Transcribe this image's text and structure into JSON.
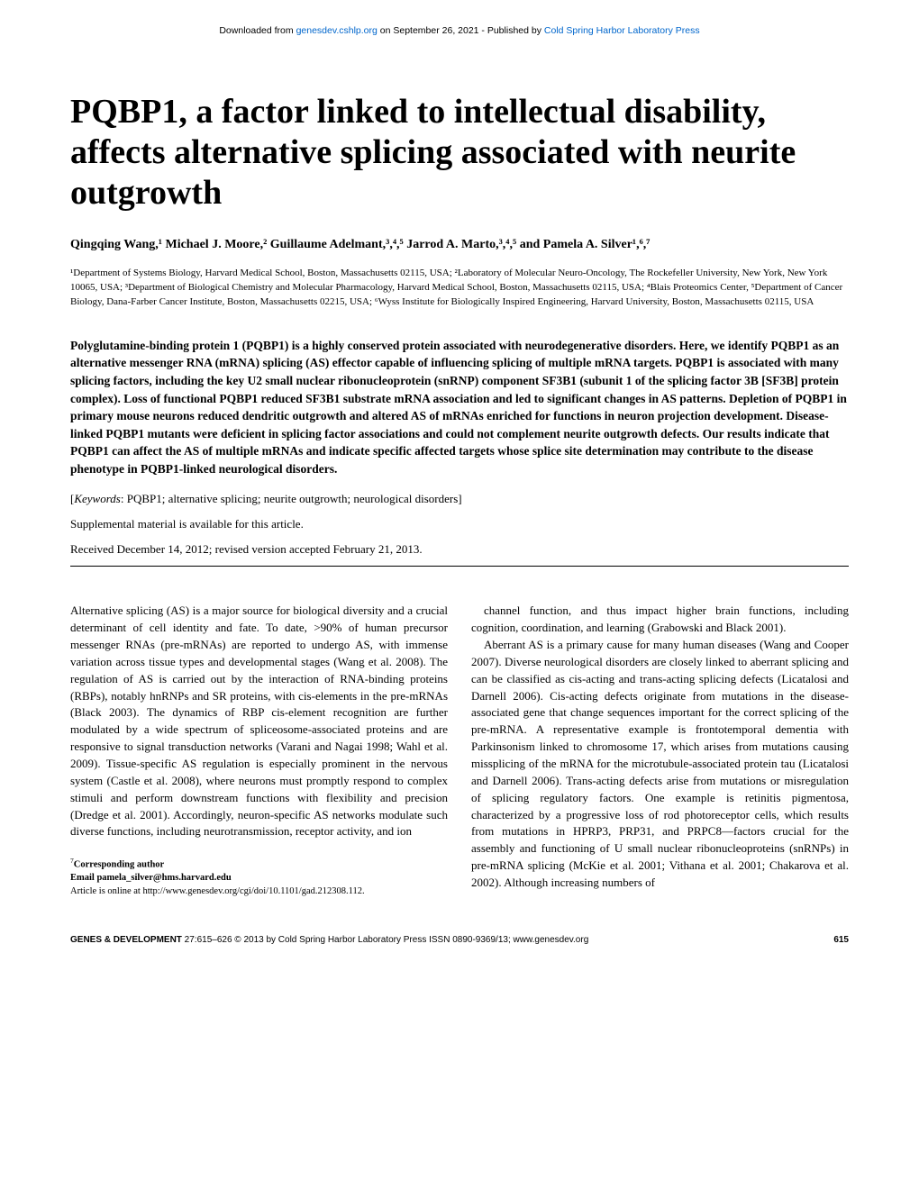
{
  "header": {
    "download_prefix": "Downloaded from ",
    "download_link_text": "genesdev.cshlp.org",
    "download_mid": " on September 26, 2021 - Published by ",
    "publisher_link_text": "Cold Spring Harbor Laboratory Press"
  },
  "title": "PQBP1, a factor linked to intellectual disability, affects alternative splicing associated with neurite outgrowth",
  "authors_line": "Qingqing Wang,¹ Michael J. Moore,² Guillaume Adelmant,³,⁴,⁵ Jarrod A. Marto,³,⁴,⁵ and Pamela A. Silver¹,⁶,⁷",
  "affiliations": "¹Department of Systems Biology, Harvard Medical School, Boston, Massachusetts 02115, USA; ²Laboratory of Molecular Neuro-Oncology, The Rockefeller University, New York, New York 10065, USA; ³Department of Biological Chemistry and Molecular Pharmacology, Harvard Medical School, Boston, Massachusetts 02115, USA; ⁴Blais Proteomics Center, ⁵Department of Cancer Biology, Dana-Farber Cancer Institute, Boston, Massachusetts 02215, USA; ⁶Wyss Institute for Biologically Inspired Engineering, Harvard University, Boston, Massachusetts 02115, USA",
  "abstract": "Polyglutamine-binding protein 1 (PQBP1) is a highly conserved protein associated with neurodegenerative disorders. Here, we identify PQBP1 as an alternative messenger RNA (mRNA) splicing (AS) effector capable of influencing splicing of multiple mRNA targets. PQBP1 is associated with many splicing factors, including the key U2 small nuclear ribonucleoprotein (snRNP) component SF3B1 (subunit 1 of the splicing factor 3B [SF3B] protein complex). Loss of functional PQBP1 reduced SF3B1 substrate mRNA association and led to significant changes in AS patterns. Depletion of PQBP1 in primary mouse neurons reduced dendritic outgrowth and altered AS of mRNAs enriched for functions in neuron projection development. Disease-linked PQBP1 mutants were deficient in splicing factor associations and could not complement neurite outgrowth defects. Our results indicate that PQBP1 can affect the AS of multiple mRNAs and indicate specific affected targets whose splice site determination may contribute to the disease phenotype in PQBP1-linked neurological disorders.",
  "keywords": {
    "label": "Keywords",
    "text": ": PQBP1; alternative splicing; neurite outgrowth; neurological disorders]"
  },
  "supplement": "Supplemental material is available for this article.",
  "received": "Received December 14, 2012; revised version accepted February 21, 2013.",
  "body": {
    "p1": "Alternative splicing (AS) is a major source for biological diversity and a crucial determinant of cell identity and fate. To date, >90% of human precursor messenger RNAs (pre-mRNAs) are reported to undergo AS, with immense variation across tissue types and developmental stages (Wang et al. 2008). The regulation of AS is carried out by the interaction of RNA-binding proteins (RBPs), notably hnRNPs and SR proteins, with cis-elements in the pre-mRNAs (Black 2003). The dynamics of RBP cis-element recognition are further modulated by a wide spectrum of spliceosome-associated proteins and are responsive to signal transduction networks (Varani and Nagai 1998; Wahl et al. 2009). Tissue-specific AS regulation is especially prominent in the nervous system (Castle et al. 2008), where neurons must promptly respond to complex stimuli and perform downstream functions with flexibility and precision (Dredge et al. 2001). Accordingly, neuron-specific AS networks modulate such diverse functions, including neurotransmission, receptor activity, and ion",
    "p2": "channel function, and thus impact higher brain functions, including cognition, coordination, and learning (Grabowski and Black 2001).",
    "p3": "Aberrant AS is a primary cause for many human diseases (Wang and Cooper 2007). Diverse neurological disorders are closely linked to aberrant splicing and can be classified as cis-acting and trans-acting splicing defects (Licatalosi and Darnell 2006). Cis-acting defects originate from mutations in the disease-associated gene that change sequences important for the correct splicing of the pre-mRNA. A representative example is frontotemporal dementia with Parkinsonism linked to chromosome 17, which arises from mutations causing missplicing of the mRNA for the microtubule-associated protein tau (Licatalosi and Darnell 2006). Trans-acting defects arise from mutations or misregulation of splicing regulatory factors. One example is retinitis pigmentosa, characterized by a progressive loss of rod photoreceptor cells, which results from mutations in HPRP3, PRP31, and PRPC8—factors crucial for the assembly and functioning of U small nuclear ribonucleoproteins (snRNPs) in pre-mRNA splicing (McKie et al. 2001; Vithana et al. 2001; Chakarova et al. 2002). Although increasing numbers of"
  },
  "corresponding": {
    "sup": "7",
    "label": "Corresponding author",
    "email_label": "Email ",
    "email": "pamela_silver@hms.harvard.edu",
    "doi": "Article is online at http://www.genesdev.org/cgi/doi/10.1101/gad.212308.112."
  },
  "footer": {
    "left_gd": "GENES & DEVELOPMENT",
    "left_rest": " 27:615–626 © 2013 by Cold Spring Harbor Laboratory Press ISSN 0890-9369/13; www.genesdev.org",
    "page_num": "615"
  },
  "colors": {
    "link": "#0066cc",
    "text": "#000000",
    "bg": "#ffffff"
  }
}
